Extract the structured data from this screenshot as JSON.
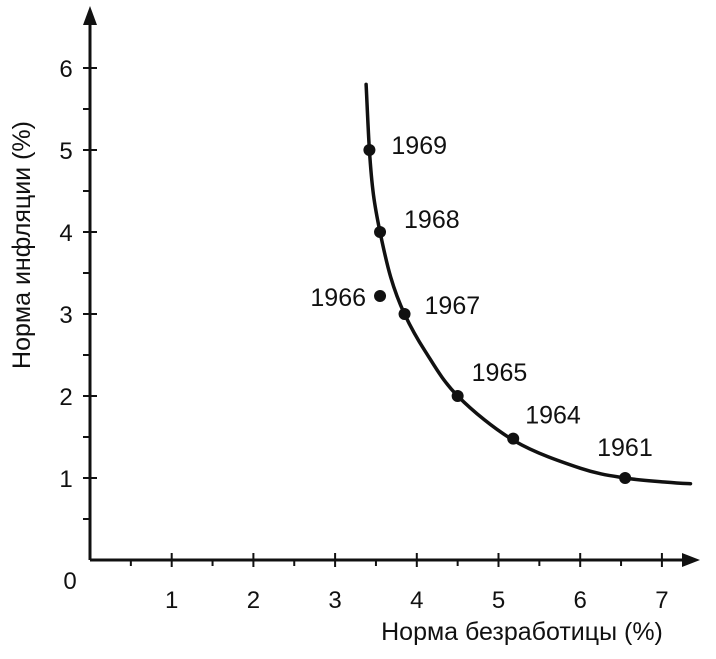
{
  "chart_data": {
    "type": "line",
    "title": "",
    "xlabel": "Норма безработицы (%)",
    "ylabel": "Норма инфляции (%)",
    "xlim": [
      0,
      7.4
    ],
    "ylim": [
      0,
      6.6
    ],
    "origin_label": "0",
    "x_ticks": [
      1,
      2,
      3,
      4,
      5,
      6,
      7
    ],
    "y_ticks": [
      1,
      2,
      3,
      4,
      5,
      6
    ],
    "x_minor_ticks": [
      0.5,
      1.5,
      2.5,
      3.5,
      4.5,
      5.5,
      6.5
    ],
    "y_minor_ticks": [
      0.5,
      1.5,
      2.5,
      3.5,
      4.5,
      5.5
    ],
    "grid": false,
    "legend": "none",
    "curve": {
      "x": [
        3.38,
        3.42,
        3.47,
        3.55,
        3.68,
        3.85,
        4.1,
        4.5,
        5.2,
        6.0,
        6.55,
        7.05,
        7.35
      ],
      "y": [
        5.8,
        5.0,
        4.45,
        4.0,
        3.45,
        3.0,
        2.55,
        2.0,
        1.45,
        1.12,
        1.0,
        0.95,
        0.93
      ]
    },
    "points": [
      {
        "label": "1969",
        "x": 3.42,
        "y": 5.0
      },
      {
        "label": "1968",
        "x": 3.55,
        "y": 4.0
      },
      {
        "label": "1966",
        "x": 3.55,
        "y": 3.22
      },
      {
        "label": "1967",
        "x": 3.85,
        "y": 3.0
      },
      {
        "label": "1965",
        "x": 4.5,
        "y": 2.0
      },
      {
        "label": "1964",
        "x": 5.18,
        "y": 1.48
      },
      {
        "label": "1961",
        "x": 6.55,
        "y": 1.0
      }
    ]
  }
}
